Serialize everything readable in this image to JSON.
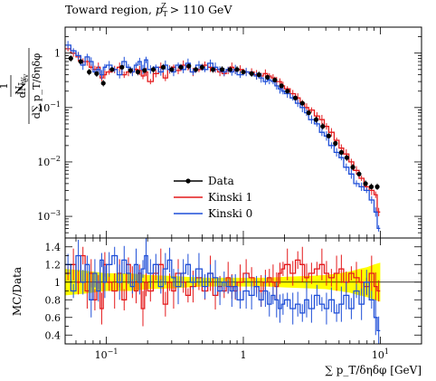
{
  "chart_data": [
    {
      "type": "scatter",
      "panel": "main",
      "title": "Toward region, p_T^Z > 110 GeV",
      "title_parts": {
        "text": "Toward region, ",
        "var": "p",
        "sub": "T",
        "sup": "Z",
        "tail": " > 110 GeV"
      },
      "ylabel": "1 / N_ev · dN_ev / d∑p_T/δηδφ",
      "ylabel_parts": {
        "num": "dN",
        "num_sub": "ev",
        "den": "d∑ p_T/δηδφ",
        "pre_num": "1",
        "pre_den": "N",
        "pre_den_sub": "ev"
      },
      "xlabel": "∑ p_T/δηδφ [GeV]",
      "xscale": "log",
      "yscale": "log",
      "xlim": [
        0.05,
        20
      ],
      "ylim": [
        0.0004,
        3
      ],
      "y_ticks": [
        {
          "value": 1,
          "label": "1"
        },
        {
          "value": 0.1,
          "label": "10",
          "sup": "−1"
        },
        {
          "value": 0.01,
          "label": "10",
          "sup": "−2"
        },
        {
          "value": 0.001,
          "label": "10",
          "sup": "−3"
        }
      ],
      "legend": {
        "position": "lower-left",
        "entries": [
          {
            "name": "Data",
            "style": "marker-line",
            "color": "#000000"
          },
          {
            "name": "Kinski 1",
            "style": "line",
            "color": "#e41a1c"
          },
          {
            "name": "Kinski 0",
            "style": "line",
            "color": "#1f4fd8"
          }
        ]
      },
      "series": [
        {
          "name": "Data",
          "color": "#000000",
          "x": [
            0.055,
            0.065,
            0.075,
            0.085,
            0.095,
            0.11,
            0.13,
            0.15,
            0.17,
            0.19,
            0.22,
            0.26,
            0.3,
            0.35,
            0.4,
            0.45,
            0.5,
            0.6,
            0.7,
            0.8,
            0.9,
            1.0,
            1.15,
            1.3,
            1.5,
            1.7,
            1.9,
            2.1,
            2.4,
            2.7,
            3.0,
            3.4,
            3.8,
            4.2,
            4.7,
            5.2,
            5.7,
            6.3,
            7.0,
            7.8,
            8.6,
            9.5
          ],
          "y": [
            0.8,
            0.7,
            0.45,
            0.42,
            0.28,
            0.5,
            0.55,
            0.48,
            0.45,
            0.48,
            0.5,
            0.55,
            0.5,
            0.55,
            0.58,
            0.5,
            0.55,
            0.5,
            0.5,
            0.5,
            0.5,
            0.45,
            0.42,
            0.4,
            0.36,
            0.32,
            0.25,
            0.2,
            0.15,
            0.12,
            0.08,
            0.06,
            0.045,
            0.03,
            0.022,
            0.015,
            0.012,
            0.008,
            0.006,
            0.004,
            0.0035,
            0.0035
          ]
        },
        {
          "name": "Kinski 1",
          "color": "#e41a1c",
          "x": [
            0.05,
            0.055,
            0.06,
            0.065,
            0.07,
            0.075,
            0.08,
            0.085,
            0.09,
            0.095,
            0.1,
            0.11,
            0.12,
            0.13,
            0.14,
            0.15,
            0.16,
            0.17,
            0.18,
            0.19,
            0.2,
            0.22,
            0.24,
            0.26,
            0.28,
            0.3,
            0.32,
            0.35,
            0.38,
            0.41,
            0.45,
            0.5,
            0.55,
            0.6,
            0.65,
            0.7,
            0.75,
            0.8,
            0.85,
            0.9,
            1.0,
            1.1,
            1.2,
            1.3,
            1.4,
            1.5,
            1.6,
            1.7,
            1.8,
            1.9,
            2.0,
            2.2,
            2.4,
            2.6,
            2.8,
            3.0,
            3.3,
            3.6,
            3.9,
            4.2,
            4.6,
            5.0,
            5.4,
            5.9,
            6.4,
            7.0,
            7.6,
            8.3,
            9.0,
            9.5
          ],
          "y": [
            1.2,
            1.0,
            0.85,
            0.7,
            0.7,
            0.55,
            0.5,
            0.55,
            0.35,
            0.4,
            0.45,
            0.5,
            0.55,
            0.4,
            0.45,
            0.45,
            0.5,
            0.48,
            0.38,
            0.45,
            0.3,
            0.42,
            0.55,
            0.35,
            0.5,
            0.55,
            0.48,
            0.6,
            0.55,
            0.45,
            0.5,
            0.6,
            0.55,
            0.5,
            0.45,
            0.42,
            0.48,
            0.55,
            0.48,
            0.5,
            0.45,
            0.45,
            0.4,
            0.38,
            0.42,
            0.38,
            0.35,
            0.3,
            0.3,
            0.25,
            0.22,
            0.18,
            0.15,
            0.12,
            0.1,
            0.09,
            0.07,
            0.06,
            0.045,
            0.035,
            0.025,
            0.018,
            0.014,
            0.01,
            0.007,
            0.005,
            0.0035,
            0.003,
            0.0025,
            0.0012
          ]
        },
        {
          "name": "Kinski 0",
          "color": "#1f4fd8",
          "x": [
            0.05,
            0.055,
            0.06,
            0.065,
            0.07,
            0.075,
            0.08,
            0.085,
            0.09,
            0.095,
            0.1,
            0.11,
            0.12,
            0.13,
            0.14,
            0.15,
            0.16,
            0.17,
            0.18,
            0.19,
            0.2,
            0.22,
            0.24,
            0.26,
            0.28,
            0.3,
            0.32,
            0.35,
            0.38,
            0.41,
            0.45,
            0.5,
            0.55,
            0.6,
            0.65,
            0.7,
            0.75,
            0.8,
            0.85,
            0.9,
            1.0,
            1.1,
            1.2,
            1.3,
            1.4,
            1.5,
            1.6,
            1.7,
            1.8,
            1.9,
            2.0,
            2.2,
            2.4,
            2.6,
            2.8,
            3.0,
            3.3,
            3.6,
            3.9,
            4.2,
            4.6,
            5.0,
            5.4,
            5.9,
            6.4,
            7.0,
            7.6,
            8.3,
            9.0,
            9.5
          ],
          "y": [
            1.4,
            1.1,
            0.9,
            0.6,
            0.85,
            0.7,
            0.45,
            0.5,
            0.4,
            0.55,
            0.6,
            0.5,
            0.4,
            0.7,
            0.55,
            0.45,
            0.6,
            0.7,
            0.5,
            0.75,
            0.5,
            0.55,
            0.45,
            0.6,
            0.5,
            0.45,
            0.6,
            0.5,
            0.65,
            0.45,
            0.6,
            0.5,
            0.65,
            0.55,
            0.5,
            0.45,
            0.5,
            0.45,
            0.5,
            0.4,
            0.45,
            0.42,
            0.38,
            0.35,
            0.3,
            0.32,
            0.3,
            0.25,
            0.22,
            0.2,
            0.18,
            0.15,
            0.12,
            0.1,
            0.08,
            0.06,
            0.05,
            0.035,
            0.03,
            0.02,
            0.015,
            0.012,
            0.008,
            0.006,
            0.004,
            0.0035,
            0.003,
            0.002,
            0.0012,
            0.0006
          ]
        }
      ]
    },
    {
      "type": "scatter",
      "panel": "ratio",
      "ylabel": "MC/Data",
      "xlabel": "∑ p_T/δηδφ [GeV]",
      "xscale": "log",
      "xlim": [
        0.05,
        20
      ],
      "ylim": [
        0.3,
        1.5
      ],
      "y_ticks": [
        0.4,
        0.6,
        0.8,
        1,
        1.2,
        1.4
      ],
      "x_ticks": [
        {
          "value": 0.1,
          "label": "10",
          "sup": "−1"
        },
        {
          "value": 1,
          "label": "1"
        },
        {
          "value": 10,
          "label": "10",
          "sup": "1"
        }
      ],
      "band": {
        "color": "#ffff00",
        "x": [
          0.05,
          0.07,
          0.1,
          0.15,
          0.2,
          0.3,
          0.5,
          0.7,
          1.0,
          1.5,
          2.0,
          3.0,
          4.0,
          5.0,
          6.0,
          7.0,
          8.0,
          9.0,
          10.0
        ],
        "lower": [
          0.85,
          0.87,
          0.9,
          0.9,
          0.92,
          0.93,
          0.95,
          0.95,
          0.95,
          0.95,
          0.94,
          0.93,
          0.92,
          0.9,
          0.88,
          0.85,
          0.83,
          0.8,
          0.78
        ],
        "upper": [
          1.15,
          1.13,
          1.1,
          1.1,
          1.08,
          1.07,
          1.05,
          1.05,
          1.05,
          1.05,
          1.06,
          1.07,
          1.08,
          1.1,
          1.12,
          1.15,
          1.17,
          1.2,
          1.22
        ]
      },
      "series": [
        {
          "name": "Kinski 1",
          "color": "#e41a1c",
          "x": [
            0.05,
            0.055,
            0.06,
            0.065,
            0.07,
            0.075,
            0.08,
            0.085,
            0.09,
            0.095,
            0.1,
            0.11,
            0.12,
            0.13,
            0.14,
            0.15,
            0.16,
            0.17,
            0.18,
            0.19,
            0.2,
            0.22,
            0.24,
            0.26,
            0.28,
            0.3,
            0.32,
            0.35,
            0.38,
            0.41,
            0.45,
            0.5,
            0.55,
            0.6,
            0.65,
            0.7,
            0.75,
            0.8,
            0.85,
            0.9,
            1.0,
            1.1,
            1.2,
            1.3,
            1.4,
            1.5,
            1.6,
            1.7,
            1.8,
            1.9,
            2.0,
            2.2,
            2.4,
            2.6,
            2.8,
            3.0,
            3.3,
            3.6,
            3.9,
            4.2,
            4.6,
            5.0,
            5.4,
            5.9,
            6.4,
            7.0,
            7.6,
            8.3,
            9.0,
            9.5
          ],
          "y": [
            1.1,
            1.2,
            1.0,
            1.3,
            0.9,
            1.1,
            0.8,
            1.0,
            0.7,
            1.2,
            1.0,
            0.9,
            1.1,
            0.8,
            1.2,
            1.0,
            0.9,
            1.1,
            0.7,
            1.0,
            0.9,
            1.1,
            1.2,
            0.75,
            1.0,
            0.9,
            1.1,
            1.0,
            0.85,
            0.95,
            1.05,
            0.9,
            1.1,
            0.85,
            0.95,
            0.9,
            1.05,
            0.95,
            0.9,
            1.0,
            1.1,
            1.05,
            0.95,
            0.9,
            1.0,
            1.05,
            1.0,
            0.95,
            1.1,
            1.15,
            1.2,
            1.1,
            1.25,
            1.2,
            1.05,
            1.1,
            1.15,
            1.2,
            1.1,
            1.05,
            1.1,
            1.15,
            1.0,
            1.1,
            1.05,
            1.0,
            0.95,
            1.1,
            0.95,
            0.9
          ]
        },
        {
          "name": "Kinski 0",
          "color": "#1f4fd8",
          "x": [
            0.05,
            0.055,
            0.06,
            0.065,
            0.07,
            0.075,
            0.08,
            0.085,
            0.09,
            0.095,
            0.1,
            0.11,
            0.12,
            0.13,
            0.14,
            0.15,
            0.16,
            0.17,
            0.18,
            0.19,
            0.2,
            0.22,
            0.24,
            0.26,
            0.28,
            0.3,
            0.32,
            0.35,
            0.38,
            0.41,
            0.45,
            0.5,
            0.55,
            0.6,
            0.65,
            0.7,
            0.75,
            0.8,
            0.85,
            0.9,
            1.0,
            1.1,
            1.2,
            1.3,
            1.4,
            1.5,
            1.6,
            1.7,
            1.8,
            1.9,
            2.0,
            2.2,
            2.4,
            2.6,
            2.8,
            3.0,
            3.3,
            3.6,
            3.9,
            4.2,
            4.6,
            5.0,
            5.4,
            5.9,
            6.4,
            7.0,
            7.6,
            8.3,
            9.0,
            9.5
          ],
          "y": [
            1.2,
            0.9,
            1.3,
            1.0,
            1.2,
            0.8,
            1.1,
            0.9,
            1.25,
            1.0,
            1.2,
            1.3,
            1.0,
            1.25,
            1.1,
            0.95,
            1.2,
            1.0,
            1.15,
            1.3,
            1.1,
            1.2,
            0.95,
            1.15,
            1.25,
            1.05,
            0.95,
            1.1,
            1.2,
            1.0,
            1.15,
            0.95,
            1.1,
            1.05,
            0.9,
            1.0,
            0.95,
            0.9,
            0.95,
            0.8,
            0.9,
            0.85,
            0.95,
            0.8,
            0.9,
            0.75,
            0.85,
            0.8,
            0.7,
            0.75,
            0.8,
            0.7,
            0.75,
            0.65,
            0.8,
            0.7,
            0.85,
            0.75,
            0.7,
            0.8,
            0.65,
            0.75,
            0.85,
            0.7,
            0.9,
            0.75,
            1.0,
            0.8,
            0.6,
            0.45
          ]
        }
      ]
    }
  ]
}
